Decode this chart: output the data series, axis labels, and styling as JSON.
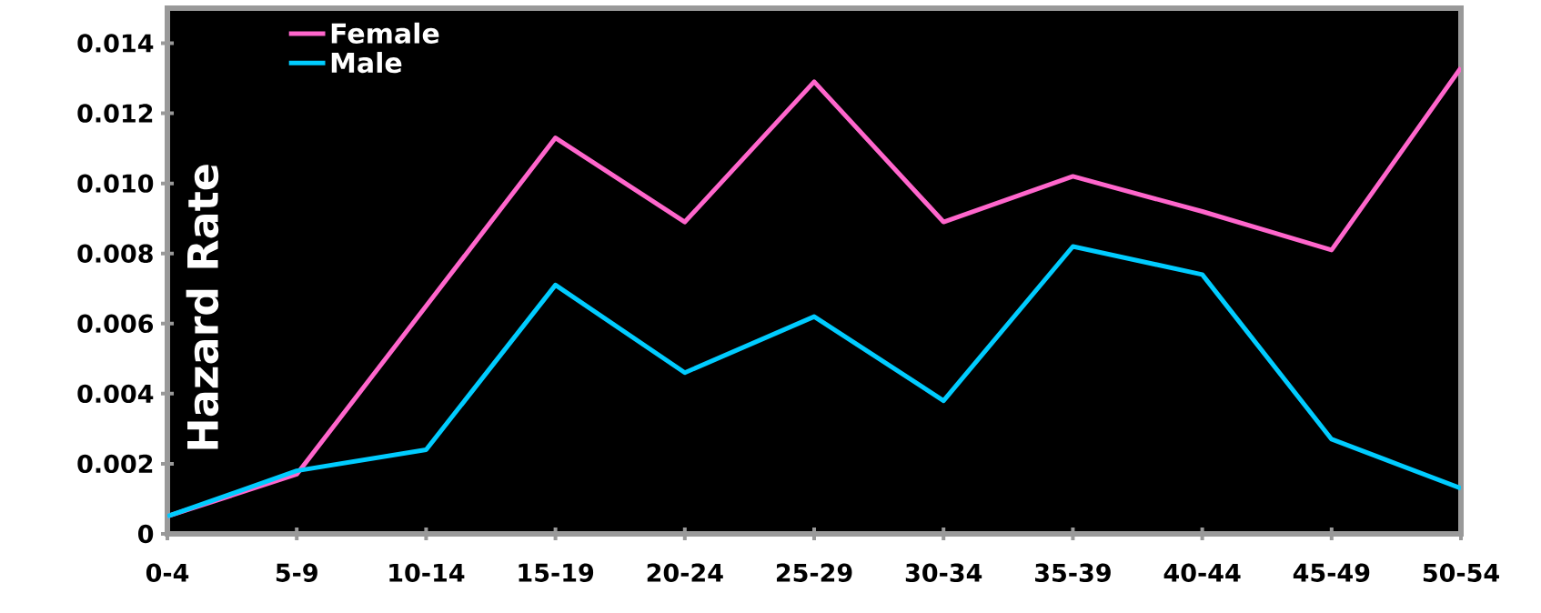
{
  "chart_data": {
    "type": "line",
    "ylabel": "Hazard Rate",
    "categories": [
      "0-4",
      "5-9",
      "10-14",
      "15-19",
      "20-24",
      "25-29",
      "30-34",
      "35-39",
      "40-44",
      "45-49",
      "50-54"
    ],
    "series": [
      {
        "name": "Female",
        "color": "#ff66cc",
        "values": [
          0.0005,
          0.0017,
          0.0065,
          0.0113,
          0.0089,
          0.0129,
          0.0089,
          0.0102,
          0.0092,
          0.0081,
          0.0133
        ]
      },
      {
        "name": "Male",
        "color": "#00ccff",
        "values": [
          0.0005,
          0.0018,
          0.0024,
          0.0071,
          0.0046,
          0.0062,
          0.0038,
          0.0082,
          0.0074,
          0.0027,
          0.0013
        ]
      }
    ],
    "ylim": [
      0,
      0.015
    ],
    "yticks": [
      0,
      0.002,
      0.004,
      0.006,
      0.008,
      {
        "value": 0.01,
        "label": "0.010"
      },
      0.012,
      0.014
    ],
    "legend": "top left",
    "grid": false,
    "marker": "none",
    "line_style": "solid"
  }
}
